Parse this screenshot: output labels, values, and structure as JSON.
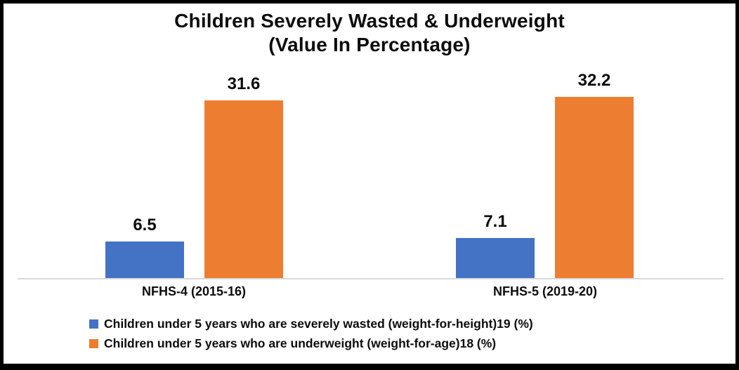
{
  "chart_data": {
    "type": "bar",
    "title_line1": "Children Severely Wasted & Underweight",
    "title_line2": "(Value In Percentage)",
    "categories": [
      "NFHS-4 (2015-16)",
      "NFHS-5 (2019-20)"
    ],
    "series": [
      {
        "name": "Children under 5 years who are severely wasted (weight-for-height)19 (%)",
        "color": "#4472C4",
        "values": [
          6.5,
          7.1
        ]
      },
      {
        "name": "Children under 5 years who are underweight (weight-for-age)18 (%)",
        "color": "#ED7D31",
        "values": [
          31.6,
          32.2
        ]
      }
    ],
    "value_labels": [
      "6.5",
      "31.6",
      "7.1",
      "32.2"
    ],
    "xlabel": "",
    "ylabel": "",
    "ylim": [
      0,
      35
    ],
    "grid": false,
    "legend_position": "bottom-left",
    "baseline_color": "#d9d9d9",
    "frame_color": "#000000"
  }
}
